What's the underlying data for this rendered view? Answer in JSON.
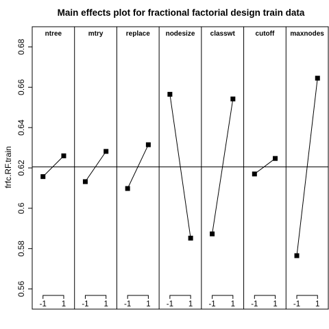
{
  "chart_data": {
    "type": "line",
    "title": "Main effects plot for fractional factorial design train data",
    "ylabel": "frfc.RF.train",
    "ylim": [
      0.55,
      0.69
    ],
    "yticks": [
      0.56,
      0.58,
      0.6,
      0.62,
      0.64,
      0.66,
      0.68
    ],
    "ytick_labels": [
      "0.56",
      "0.58",
      "0.6",
      "0.62",
      "0.64",
      "0.66",
      "0.68"
    ],
    "x_levels": [
      "-1",
      "1"
    ],
    "grand_mean": 0.6205,
    "panels": [
      {
        "name": "ntree",
        "values": [
          0.6157,
          0.626
        ]
      },
      {
        "name": "mtry",
        "values": [
          0.6132,
          0.6282
        ]
      },
      {
        "name": "replace",
        "values": [
          0.6098,
          0.6315
        ]
      },
      {
        "name": "nodesize",
        "values": [
          0.6565,
          0.5852
        ]
      },
      {
        "name": "classwt",
        "values": [
          0.5873,
          0.6542
        ]
      },
      {
        "name": "cutoff",
        "values": [
          0.617,
          0.6247
        ]
      },
      {
        "name": "maxnodes",
        "values": [
          0.5765,
          0.6645
        ]
      }
    ],
    "grid": false,
    "marker": "filled-square",
    "color": "#000000"
  }
}
